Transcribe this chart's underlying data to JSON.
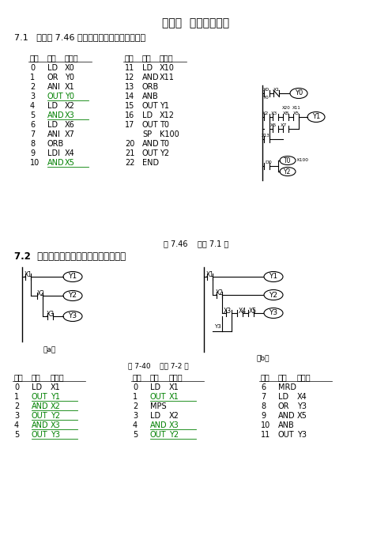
{
  "title": "第七章  基本逻辑指令",
  "section1_title": "7.1   写出图 7.46 所示梯形图对应的指令程序。",
  "section2_title": "7.2  写出图所示梯形图对应的指令程序。",
  "table1_col1": [
    [
      "0",
      "LD",
      "X0"
    ],
    [
      "1",
      "OR",
      "Y0"
    ],
    [
      "2",
      "ANI",
      "X1"
    ],
    [
      "3",
      "OUT",
      "Y0"
    ],
    [
      "4",
      "LD",
      "X2"
    ],
    [
      "5",
      "AND",
      "X3"
    ],
    [
      "6",
      "LD",
      "X6"
    ],
    [
      "7",
      "ANI",
      "X7"
    ],
    [
      "8",
      "ORB",
      ""
    ],
    [
      "9",
      "LDI",
      "X4"
    ],
    [
      "10",
      "AND",
      "X5"
    ]
  ],
  "table1_col2": [
    [
      "11",
      "LD",
      "X10"
    ],
    [
      "12",
      "AND",
      "X11"
    ],
    [
      "13",
      "ORB",
      ""
    ],
    [
      "14",
      "ANB",
      ""
    ],
    [
      "15",
      "OUT",
      "Y1"
    ],
    [
      "16",
      "LD",
      "X12"
    ],
    [
      "17",
      "OUT",
      "T0"
    ],
    [
      "",
      "SP",
      "K100"
    ],
    [
      "20",
      "AND",
      "T0"
    ],
    [
      "21",
      "OUT",
      "Y2"
    ],
    [
      "22",
      "END",
      ""
    ]
  ],
  "fig1_caption": "图 7.46    对题 7.1 图",
  "table2a": [
    [
      "0",
      "LD",
      "X1"
    ],
    [
      "1",
      "OUT",
      "Y1"
    ],
    [
      "2",
      "AND",
      "X2"
    ],
    [
      "3",
      "OUT",
      "Y2"
    ],
    [
      "4",
      "AND",
      "X3"
    ],
    [
      "5",
      "OUT",
      "Y3"
    ]
  ],
  "table2b": [
    [
      "0",
      "LD",
      "X1"
    ],
    [
      "1",
      "OUT",
      "X1"
    ],
    [
      "2",
      "MPS",
      ""
    ],
    [
      "3",
      "LD",
      "X2"
    ],
    [
      "4",
      "AND",
      "X3"
    ],
    [
      "5",
      "OUT",
      "Y2"
    ]
  ],
  "table2c": [
    [
      "6",
      "MRD",
      ""
    ],
    [
      "7",
      "LD",
      "X4"
    ],
    [
      "8",
      "OR",
      "Y3"
    ],
    [
      "9",
      "AND",
      "X5"
    ],
    [
      "10",
      "ANB",
      ""
    ],
    [
      "11",
      "OUT",
      "Y3"
    ]
  ],
  "fig2_caption": "图 7-40    对题 7-2 图",
  "bg_color": "#ffffff"
}
